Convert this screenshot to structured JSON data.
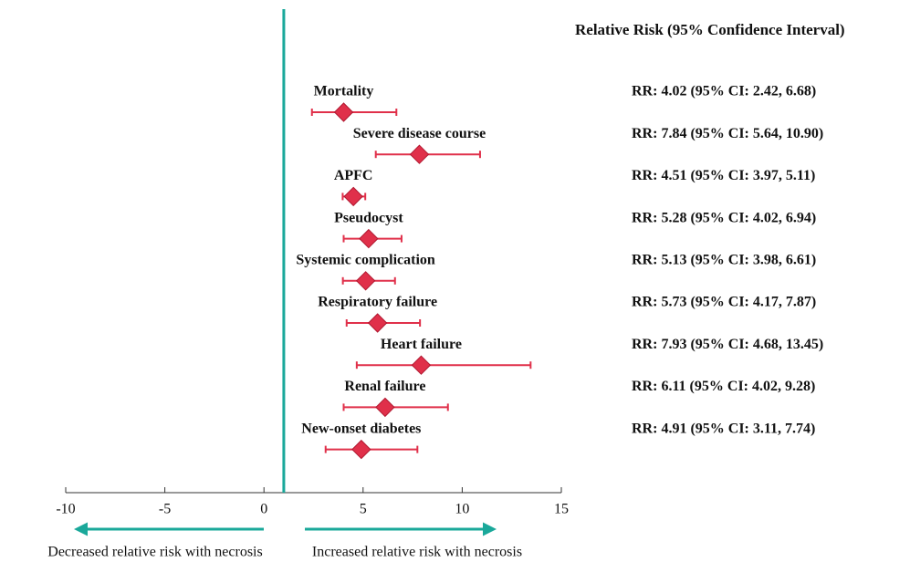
{
  "chart_data": {
    "type": "forest",
    "title": "Relative Risk (95% Confidence Interval)",
    "categories": [
      "Mortality",
      "Severe disease course",
      "APFC",
      "Pseudocyst",
      "Systemic complication",
      "Respiratory failure",
      "Heart failure",
      "Renal failure",
      "New-onset diabetes"
    ],
    "values": [
      4.02,
      7.84,
      4.51,
      5.28,
      5.13,
      5.73,
      7.93,
      6.11,
      4.91
    ],
    "ci_lower": [
      2.42,
      5.64,
      3.97,
      4.02,
      3.98,
      4.17,
      4.68,
      4.02,
      3.11
    ],
    "ci_upper": [
      6.68,
      10.9,
      5.11,
      6.94,
      6.61,
      7.87,
      13.45,
      9.28,
      7.74
    ],
    "value_labels": [
      "RR: 4.02 (95% CI: 2.42, 6.68)",
      "RR: 7.84 (95% CI: 5.64, 10.90)",
      "RR: 4.51 (95% CI: 3.97, 5.11)",
      "RR: 5.28 (95% CI: 4.02, 6.94)",
      "RR: 5.13 (95% CI: 3.98, 6.61)",
      "RR: 5.73 (95% CI: 4.17, 7.87)",
      "RR: 7.93 (95% CI: 4.68, 13.45)",
      "RR: 6.11 (95% CI: 4.02, 9.28)",
      "RR: 4.91 (95% CI: 3.11, 7.74)"
    ],
    "color": "#e0304a",
    "reference_line": 1,
    "reference_color": "#1aa89a",
    "xlim": [
      -10,
      15
    ],
    "xticks": [
      -10,
      -5,
      0,
      5,
      10,
      15
    ],
    "annotations": [
      "Decreased relative risk with necrosis",
      "Increased relative risk with necrosis"
    ]
  }
}
